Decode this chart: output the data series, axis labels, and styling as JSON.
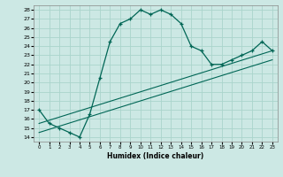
{
  "xlabel": "Humidex (Indice chaleur)",
  "ylabel": "",
  "background_color": "#cce8e4",
  "grid_color": "#aad4cc",
  "line_color": "#006655",
  "xlim": [
    -0.5,
    23.5
  ],
  "ylim": [
    13.5,
    28.5
  ],
  "xticks": [
    0,
    1,
    2,
    3,
    4,
    5,
    6,
    7,
    8,
    9,
    10,
    11,
    12,
    13,
    14,
    15,
    16,
    17,
    18,
    19,
    20,
    21,
    22,
    23
  ],
  "yticks": [
    14,
    15,
    16,
    17,
    18,
    19,
    20,
    21,
    22,
    23,
    24,
    25,
    26,
    27,
    28
  ],
  "main_x": [
    0,
    1,
    2,
    3,
    4,
    5,
    6,
    7,
    8,
    9,
    10,
    11,
    12,
    13,
    14,
    15,
    16,
    17,
    18,
    19,
    20,
    21,
    22,
    23
  ],
  "main_y": [
    17,
    15.5,
    15,
    14.5,
    14,
    16.5,
    20.5,
    24.5,
    26.5,
    27,
    28,
    27.5,
    28,
    27.5,
    26.5,
    24,
    23.5,
    22,
    22,
    22.5,
    23,
    23.5,
    24.5,
    23.5
  ],
  "line1_x": [
    0,
    23
  ],
  "line1_y": [
    15.5,
    23.5
  ],
  "line2_x": [
    0,
    23
  ],
  "line2_y": [
    14.5,
    22.5
  ]
}
